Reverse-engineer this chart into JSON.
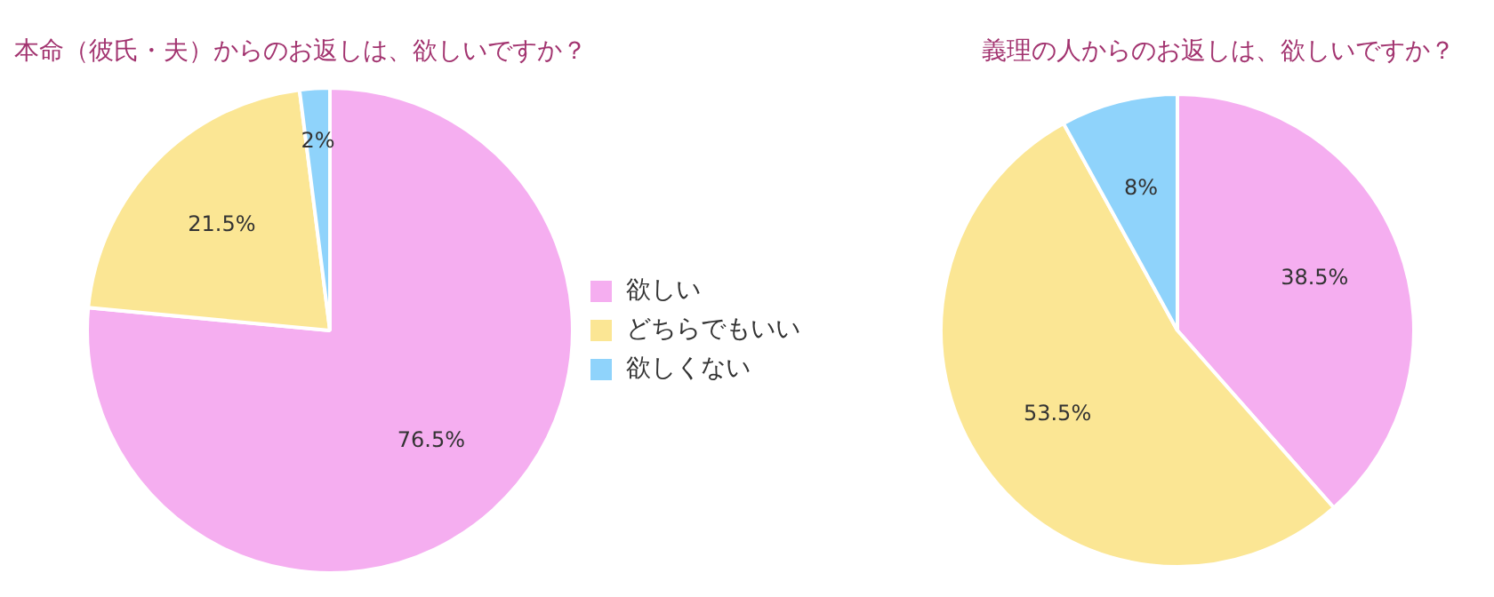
{
  "chart_data": [
    {
      "type": "pie",
      "title": "本命（彼氏・夫）からのお返しは、欲しいですか？",
      "categories": [
        "欲しい",
        "どちらでもいい",
        "欲しくない"
      ],
      "values": [
        76.5,
        21.5,
        2
      ],
      "value_labels": [
        "76.5%",
        "21.5%",
        "2%"
      ],
      "colors": [
        "#f5aef0",
        "#fbe694",
        "#8fd3fb"
      ],
      "legend": "right"
    },
    {
      "type": "pie",
      "title": "義理の人からのお返しは、欲しいですか？",
      "categories": [
        null,
        null,
        null
      ],
      "values": [
        38.5,
        53.5,
        8
      ],
      "value_labels": [
        "38.5%",
        "53.5%",
        "8%"
      ],
      "colors": [
        "#f5aef0",
        "#fbe694",
        "#8fd3fb"
      ],
      "legend": false
    }
  ]
}
